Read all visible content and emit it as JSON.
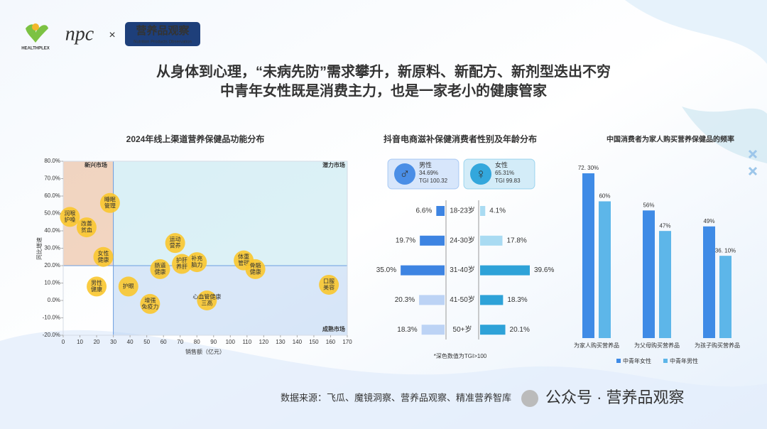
{
  "header": {
    "logo_text": "HEALTHPLEX",
    "brand": "npc",
    "cross": "×",
    "partner": "营养品观察",
    "partner_en": "Nutrition Products Observation",
    "headline": [
      "从身体到心理，“未病先防”需求攀升，新原料、新配方、新剂型迭出不穷",
      "中青年女性既是消费主力，也是一家老小的健康管家"
    ]
  },
  "footer": {
    "source": "数据来源：飞瓜、魔镜洞察、营养品观察、精准营养智库",
    "watermark": "公众号 · 营养品观察"
  },
  "chart_data": [
    {
      "type": "scatter",
      "title": "2024年线上渠道营养保健品功能分布",
      "x_label": "销售额（亿元）",
      "y_label": "同比增速",
      "labels": [
        "润喉护嗓",
        "改善贫血",
        "睡眠管理",
        "女性健康",
        "男性健康",
        "护眼",
        "运动营养",
        "肠道健康",
        "护肝养肝",
        "补充脑力",
        "增强免疫力",
        "心血管健康三高",
        "体重管理",
        "骨骼健康",
        "口服美容"
      ],
      "x": [
        4,
        14,
        28,
        24,
        20,
        39,
        67,
        58,
        71,
        80,
        52,
        86,
        108,
        115,
        159
      ],
      "y": [
        48,
        42,
        56,
        25,
        8,
        8,
        33,
        18,
        21,
        22,
        -2,
        0,
        23,
        18,
        9
      ],
      "color": "#f9c62e",
      "xlim": [
        0,
        170
      ],
      "xticks": [
        0,
        10,
        20,
        30,
        40,
        50,
        60,
        70,
        80,
        90,
        100,
        110,
        120,
        130,
        140,
        150,
        160,
        170
      ],
      "ylim": [
        -20,
        80
      ],
      "yticks": [
        {
          "value": -20,
          "label": "-20.0%"
        },
        {
          "value": -10,
          "label": "-10.0%"
        },
        {
          "value": 0,
          "label": "0.0%"
        },
        {
          "value": 10,
          "label": "10.0%"
        },
        {
          "value": 20,
          "label": "20.0%"
        },
        {
          "value": 30,
          "label": "30.0%"
        },
        {
          "value": 40,
          "label": "40.0%"
        },
        {
          "value": 50,
          "label": "50.0%"
        },
        {
          "value": 60,
          "label": "60.0%"
        },
        {
          "value": 70,
          "label": "70.0%"
        },
        {
          "value": 80,
          "label": "80.0%"
        }
      ],
      "x_divider": 30,
      "y_divider": 20,
      "quadrants": [
        {
          "label": "新兴市场",
          "corner": "top-left",
          "color": "#e9b48e"
        },
        {
          "label": "潜力市场",
          "corner": "top-right",
          "color": "#bfe6ee"
        },
        {
          "label": "成熟市场",
          "corner": "bottom-right",
          "color": "#b9d3f3"
        }
      ]
    },
    {
      "type": "butterfly",
      "title": "抖音电商滋补保健消费者性别及年龄分布",
      "categories": [
        "18-23岁",
        "24-30岁",
        "31-40岁",
        "41-50岁",
        "50+岁"
      ],
      "series": [
        {
          "name": "男性",
          "share": "34.69%",
          "tgi": "TGI 100.32",
          "color": "#4a8ee6",
          "values": [
            6.6,
            19.7,
            35.0,
            20.3,
            18.3
          ],
          "value_labels": [
            "6.6%",
            "19.7%",
            "35.0%",
            "20.3%",
            "18.3%"
          ],
          "colors": [
            "#3d84e2",
            "#3d84e2",
            "#3d84e2",
            "#bcd3f5",
            "#bcd3f5"
          ]
        },
        {
          "name": "女性",
          "share": "65.31%",
          "tgi": "TGI 99.83",
          "color": "#33a7dc",
          "values": [
            4.1,
            17.8,
            39.6,
            18.3,
            20.1
          ],
          "value_labels": [
            "4.1%",
            "17.8%",
            "39.6%",
            "18.3%",
            "20.1%"
          ],
          "colors": [
            "#a9dbf2",
            "#a9dbf2",
            "#2ea2d8",
            "#2ea2d8",
            "#2ea2d8"
          ]
        }
      ],
      "note": "*深色数值为TGI>100"
    },
    {
      "type": "grouped_bar",
      "title": "中国消费者为家人购买营养保健品的频率",
      "categories": [
        "为家人购买营养品",
        "为父母购买营养品",
        "为孩子购买营养品"
      ],
      "series": [
        {
          "name": "中青年女性",
          "color": "#3f8be6",
          "values": [
            72.3,
            56,
            49
          ],
          "value_labels": [
            "72. 30%",
            "56%",
            "49%"
          ]
        },
        {
          "name": "中青年男性",
          "color": "#5db6e9",
          "values": [
            60,
            47,
            36.1
          ],
          "value_labels": [
            "60%",
            "47%",
            "36. 10%"
          ]
        }
      ]
    }
  ]
}
